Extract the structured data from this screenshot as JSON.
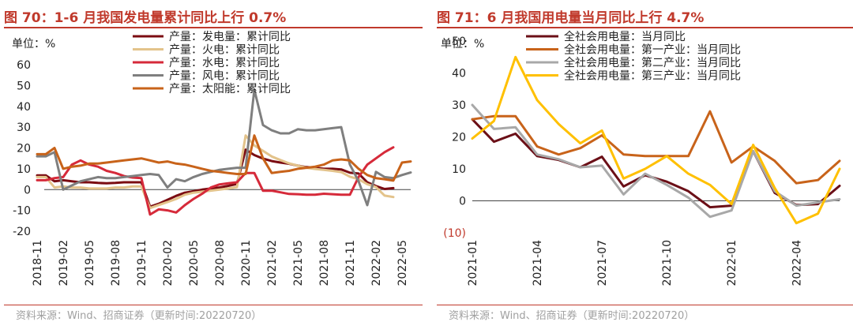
{
  "figures": [
    {
      "title": "图 70：1-6 月我国发电量累计同比上行 0.7%",
      "source": "资料来源：Wind、招商证券（更新时间:20220720）",
      "chart_data": {
        "type": "line",
        "unit": "单位：%",
        "ylim": [
          -20,
          60
        ],
        "yticks": [
          -20,
          -10,
          0,
          10,
          20,
          30,
          40,
          50,
          60
        ],
        "ytick_labels": [
          "-20",
          "-10",
          "0",
          "10",
          "20",
          "30",
          "40",
          "50",
          "60"
        ],
        "x_start": "2018-11",
        "x_count": 44,
        "xtick_labels": [
          "2018-11",
          "2019-02",
          "2019-05",
          "2019-08",
          "2019-11",
          "2020-02",
          "2020-05",
          "2020-08",
          "2020-11",
          "2021-02",
          "2021-05",
          "2021-08",
          "2021-11",
          "2022-02",
          "2022-05"
        ],
        "series": [
          {
            "name": "产量：发电量：累计同比",
            "color": "#7b0c12",
            "values": [
              6.8,
              6.8,
              4.0,
              4.5,
              4.0,
              3.5,
              3.5,
              3.2,
              3.0,
              3.2,
              3.5,
              3.5,
              3.5,
              -8.2,
              -6.8,
              -4.9,
              -3.0,
              -1.5,
              -0.8,
              0.0,
              0.5,
              1.0,
              1.8,
              2.7,
              19.2,
              16.6,
              14.9,
              13.7,
              13.0,
              12.4,
              11.5,
              10.8,
              10.5,
              10.0,
              10.0,
              9.7,
              8.1,
              7.7,
              3.5,
              1.7,
              0.3,
              0.7,
              null,
              null
            ]
          },
          {
            "name": "产量：火电：累计同比",
            "color": "#e3c38b",
            "values": [
              6.0,
              6.0,
              1.0,
              1.5,
              1.0,
              1.0,
              0.5,
              0.5,
              0.5,
              1.0,
              1.0,
              1.5,
              1.5,
              -8.9,
              -7.4,
              -6.0,
              -4.5,
              -2.5,
              -1.5,
              -1.0,
              -0.5,
              0.0,
              0.5,
              1.2,
              26.0,
              21.2,
              18.6,
              15.9,
              14.2,
              12.6,
              11.5,
              10.5,
              9.9,
              9.5,
              9.0,
              8.4,
              6.2,
              5.0,
              2.6,
              1.2,
              -2.9,
              -3.6,
              null,
              null
            ]
          },
          {
            "name": "产量：水电：累计同比",
            "color": "#d62a3a",
            "values": [
              4.5,
              4.5,
              5.5,
              6.0,
              12.0,
              14.0,
              12.0,
              11.0,
              9.0,
              8.0,
              6.5,
              5.8,
              5.5,
              -12.0,
              -9.5,
              -10.0,
              -11.0,
              -7.5,
              -4.5,
              -2.0,
              1.0,
              2.5,
              3.0,
              3.5,
              8.0,
              8.0,
              -0.6,
              -0.5,
              -1.3,
              -2.1,
              -2.2,
              -2.5,
              -2.5,
              -2.0,
              -2.2,
              -2.5,
              -2.5,
              6.0,
              12.0,
              15.0,
              18.0,
              20.3,
              null,
              null
            ]
          },
          {
            "name": "产量：风电：累计同比",
            "color": "#7f7f7f",
            "values": [
              16.0,
              16.0,
              18.0,
              0.0,
              2.0,
              4.0,
              5.0,
              6.0,
              5.5,
              5.5,
              6.0,
              6.5,
              7.0,
              7.5,
              7.0,
              1.0,
              5.0,
              4.0,
              6.0,
              7.5,
              8.5,
              9.5,
              10.0,
              10.5,
              10.5,
              48.0,
              31.0,
              28.5,
              27.0,
              27.0,
              29.0,
              28.5,
              28.5,
              29.0,
              29.5,
              30.0,
              12.0,
              4.0,
              -7.5,
              8.5,
              6.0,
              5.5,
              7.0,
              8.2
            ]
          },
          {
            "name": "产量：太阳能：累计同比",
            "color": "#c8631a",
            "values": [
              17.0,
              17.0,
              20.0,
              10.0,
              11.0,
              11.5,
              12.5,
              12.5,
              13.0,
              13.5,
              14.0,
              14.5,
              15.0,
              14.0,
              13.0,
              13.5,
              12.5,
              12.0,
              11.0,
              10.0,
              9.0,
              8.5,
              8.0,
              7.5,
              7.5,
              26.0,
              15.0,
              8.0,
              8.5,
              9.0,
              10.0,
              10.5,
              11.0,
              12.0,
              14.0,
              14.5,
              14.0,
              10.0,
              7.0,
              5.5,
              5.0,
              4.3,
              13.0,
              13.5
            ]
          }
        ]
      }
    },
    {
      "title": "图 71：6 月我国用电量当月同比上行 4.7%",
      "source": "资料来源：Wind、招商证券（更新时间:20220720）",
      "chart_data": {
        "type": "line",
        "unit": "单位：%",
        "ylim": [
          -10,
          50
        ],
        "yticks": [
          -10,
          0,
          10,
          20,
          30,
          40,
          50
        ],
        "ytick_labels": [
          "(10)",
          "0",
          "10",
          "20",
          "30",
          "40",
          "50"
        ],
        "x_start": "2021-01",
        "x_count": 18,
        "xtick_labels": [
          "2021-01",
          "2021-04",
          "2021-07",
          "2021-10",
          "2022-01",
          "2022-04"
        ],
        "series": [
          {
            "name": "全社会用电量：当月同比",
            "color": "#6b0f17",
            "values": [
              25.5,
              18.5,
              21.0,
              14.0,
              12.8,
              10.5,
              13.8,
              4.5,
              8.0,
              6.0,
              3.0,
              -2.0,
              -1.5,
              15.5,
              2.5,
              -1.3,
              -1.0,
              4.7
            ]
          },
          {
            "name": "全社会用电量：第一产业：当月同比",
            "color": "#c8631a",
            "values": [
              25.5,
              26.5,
              26.5,
              17.0,
              14.5,
              16.5,
              20.5,
              14.5,
              14.0,
              14.0,
              14.0,
              28.0,
              12.0,
              17.0,
              12.5,
              5.5,
              6.5,
              12.5
            ]
          },
          {
            "name": "全社会用电量：第二产业：当月同比",
            "color": "#a8a8a8",
            "values": [
              30.0,
              22.5,
              23.0,
              14.5,
              13.0,
              10.5,
              11.0,
              2.0,
              8.5,
              5.0,
              1.0,
              -5.0,
              -3.0,
              15.5,
              3.0,
              -1.5,
              -0.5,
              0.5
            ]
          },
          {
            "name": "全社会用电量：第三产业：当月同比",
            "color": "#ffc000",
            "values": [
              19.5,
              25.0,
              45.0,
              31.5,
              24.0,
              18.0,
              22.0,
              7.0,
              10.0,
              14.0,
              8.5,
              5.0,
              -1.0,
              17.5,
              4.0,
              -7.0,
              -4.0,
              10.0
            ]
          }
        ]
      }
    }
  ]
}
